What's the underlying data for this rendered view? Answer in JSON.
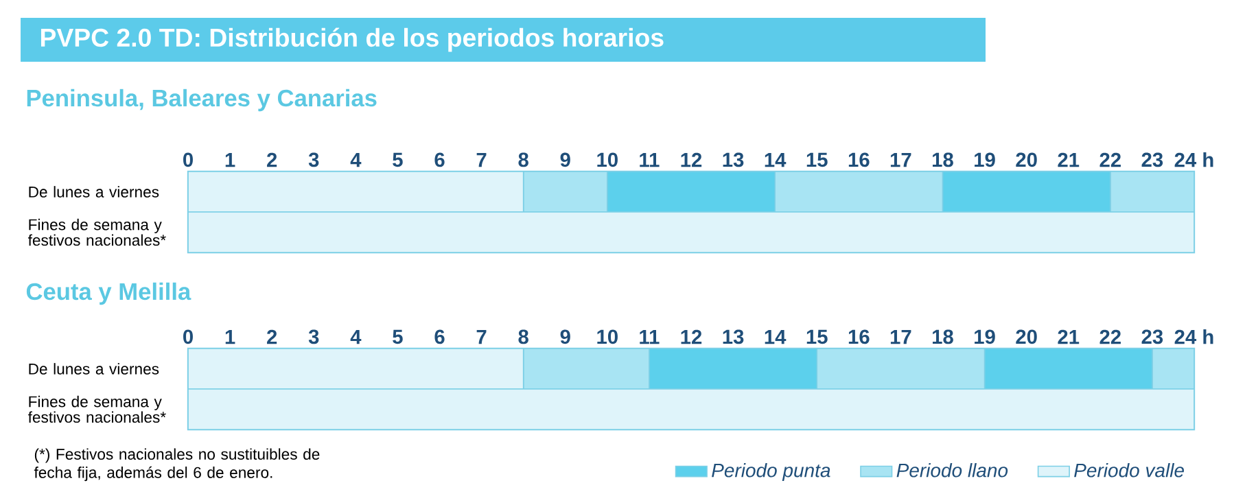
{
  "chart_data": [
    {
      "type": "bar",
      "orientation": "horizontal",
      "stacked": true,
      "title": "PVPC 2.0 TD: Distribución de los periodos horarios",
      "subtitle": "Peninsula, Baleares y Canarias",
      "categories": [
        "De lunes a viernes",
        "Fines de semana y festivos nacionales*"
      ],
      "series": [
        {
          "color": "#dff4fa",
          "values": [
            8,
            24
          ]
        },
        {
          "color": "#a8e4f3",
          "values": [
            2,
            0
          ]
        },
        {
          "color": "#5cd0ec",
          "values": [
            4,
            0
          ]
        },
        {
          "color": "#a8e4f3",
          "values": [
            4,
            0
          ]
        },
        {
          "color": "#5cd0ec",
          "values": [
            4,
            0
          ]
        },
        {
          "color": "#a8e4f3",
          "values": [
            2,
            0
          ]
        }
      ],
      "xlim": [
        0,
        24
      ],
      "xticks": [
        0,
        1,
        2,
        3,
        4,
        5,
        6,
        7,
        8,
        9,
        10,
        11,
        12,
        13,
        14,
        15,
        16,
        17,
        18,
        19,
        20,
        21,
        22,
        23,
        {
          "value": 24,
          "label": "24 h"
        }
      ],
      "legend": false
    },
    {
      "type": "bar",
      "orientation": "horizontal",
      "stacked": true,
      "title": "Ceuta y Melilla",
      "categories": [
        "De lunes a viernes",
        "Fines de semana y festivos nacionales*"
      ],
      "series": [
        {
          "name": "Periodo valle",
          "color": "#dff4fa",
          "values": [
            8,
            24
          ]
        },
        {
          "name": "Periodo llano",
          "color": "#a8e4f3",
          "values": [
            3,
            0
          ]
        },
        {
          "name": "Periodo punta",
          "color": "#5cd0ec",
          "values": [
            4,
            0
          ]
        },
        {
          "color": "#a8e4f3",
          "values": [
            4,
            0
          ]
        },
        {
          "color": "#5cd0ec",
          "values": [
            4,
            0
          ]
        },
        {
          "color": "#a8e4f3",
          "values": [
            1,
            0
          ]
        }
      ],
      "xlim": [
        0,
        24
      ],
      "xticks": [
        0,
        1,
        2,
        3,
        4,
        5,
        6,
        7,
        8,
        9,
        10,
        11,
        12,
        13,
        14,
        15,
        16,
        17,
        18,
        19,
        20,
        21,
        22,
        23,
        {
          "value": 24,
          "label": "24 h"
        }
      ],
      "legend": "bottom right",
      "annotations": [
        "(*) Festivos nacionales no sustituibles de fecha fija, además del 6 de enero."
      ]
    }
  ]
}
